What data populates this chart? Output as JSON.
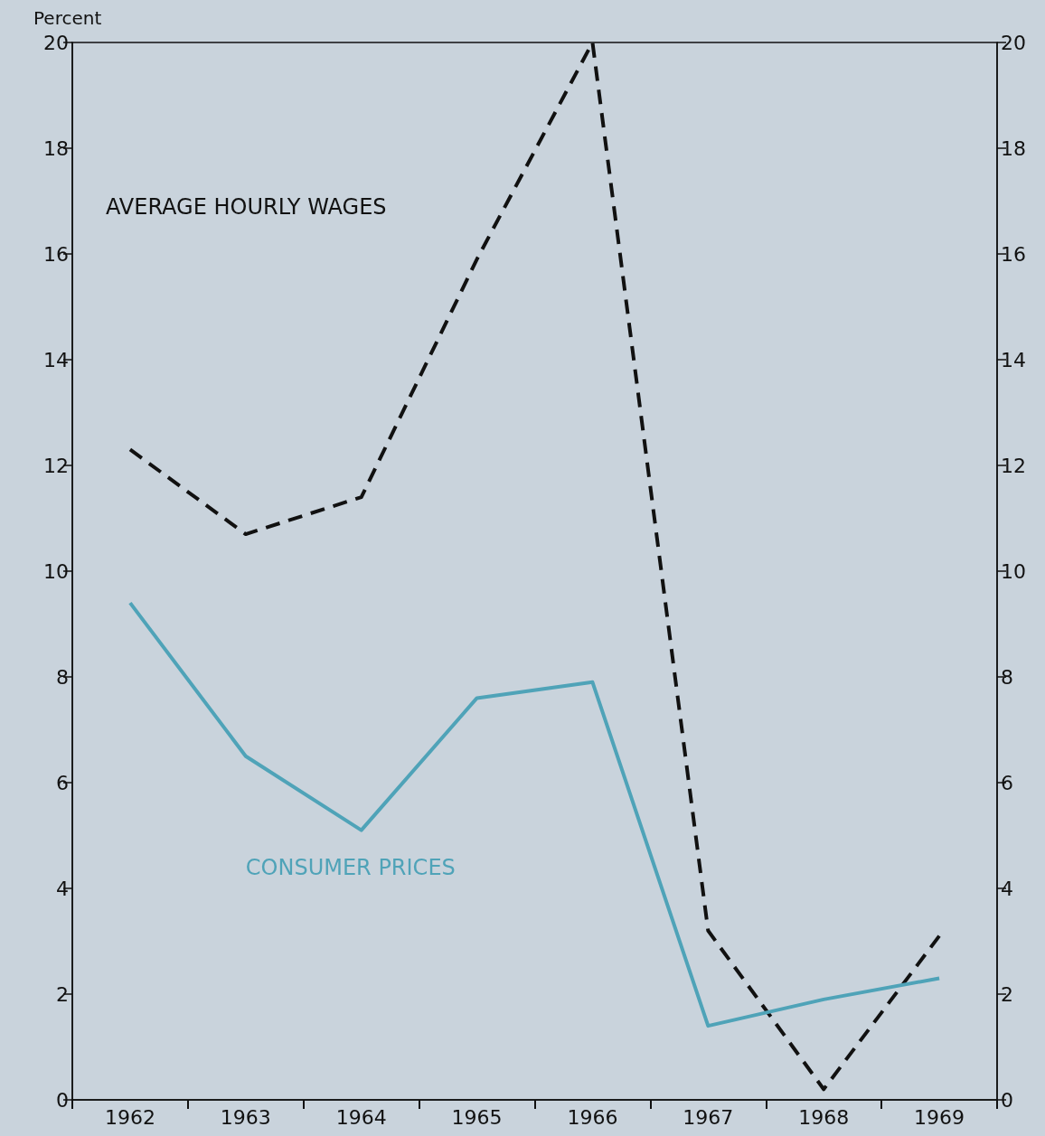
{
  "chart_data": {
    "type": "line",
    "ylabel": "Percent",
    "categories": [
      "1962",
      "1963",
      "1964",
      "1965",
      "1966",
      "1967",
      "1968",
      "1969"
    ],
    "series": [
      {
        "name": "AVERAGE HOURLY WAGES",
        "color": "#111111",
        "line_style": "dashed",
        "values": [
          12.3,
          10.7,
          11.4,
          15.9,
          20.0,
          3.2,
          0.2,
          3.1
        ]
      },
      {
        "name": "CONSUMER PRICES",
        "color": "#4fa3b8",
        "line_style": "solid",
        "values": [
          9.4,
          6.5,
          5.1,
          7.6,
          7.9,
          1.4,
          1.9,
          2.3
        ]
      }
    ],
    "ylim": [
      0,
      20
    ],
    "yticks": [
      0,
      2,
      4,
      6,
      8,
      10,
      12,
      14,
      16,
      18,
      20
    ],
    "y2lim": [
      0,
      20
    ],
    "y2ticks": [
      0,
      2,
      4,
      6,
      8,
      10,
      12,
      14,
      16,
      18,
      20
    ],
    "legend": false,
    "grid": false,
    "marker": "none"
  }
}
